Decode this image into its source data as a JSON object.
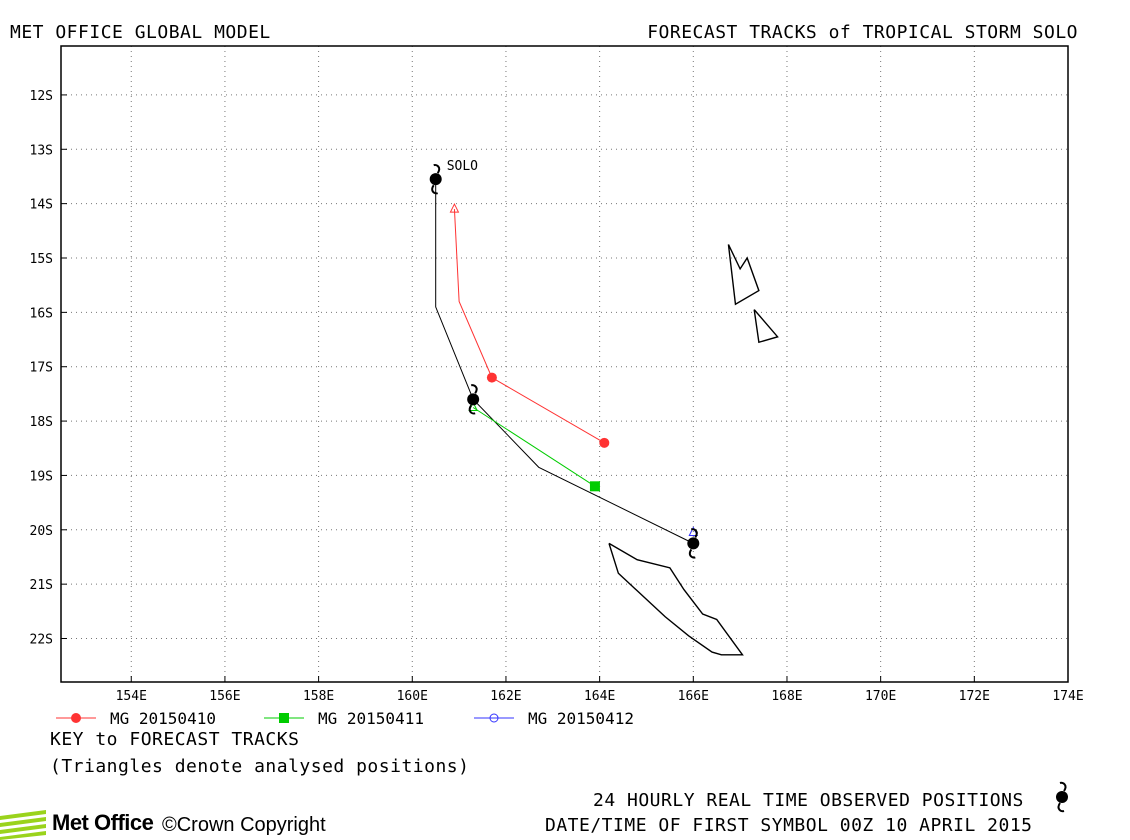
{
  "header": {
    "left_title": "MET OFFICE GLOBAL MODEL",
    "right_title": "FORECAST TRACKS of TROPICAL STORM SOLO"
  },
  "footer": {
    "key_title": "KEY to FORECAST TRACKS",
    "key_note": "(Triangles denote analysed positions)",
    "observed_note": "24 HOURLY REAL TIME OBSERVED POSITIONS",
    "datetime_note": "DATE/TIME OF FIRST SYMBOL 00Z 10 APRIL 2015",
    "logo_text": "Met Office",
    "copyright": "©Crown Copyright"
  },
  "chart_data": {
    "type": "line",
    "title": "FORECAST TRACKS of TROPICAL STORM SOLO",
    "xlim": [
      152.5,
      174.0
    ],
    "ylim": [
      -22.8,
      -11.1
    ],
    "x_ticks": [
      154,
      156,
      158,
      160,
      162,
      164,
      166,
      168,
      170,
      172,
      174
    ],
    "x_tick_labels": [
      "154E",
      "156E",
      "158E",
      "160E",
      "162E",
      "164E",
      "166E",
      "168E",
      "170E",
      "172E",
      "174E"
    ],
    "y_ticks": [
      -12,
      -13,
      -14,
      -15,
      -16,
      -17,
      -18,
      -19,
      -20,
      -21,
      -22
    ],
    "y_tick_labels": [
      "12S",
      "13S",
      "14S",
      "15S",
      "16S",
      "17S",
      "18S",
      "19S",
      "20S",
      "21S",
      "22S"
    ],
    "grid": true,
    "storm_label": "SOLO",
    "observed_track": {
      "color": "#000000",
      "points": [
        [
          160.5,
          -13.55
        ],
        [
          160.5,
          -15.9
        ],
        [
          161.3,
          -17.6
        ],
        [
          162.7,
          -18.85
        ],
        [
          166.0,
          -20.25
        ]
      ],
      "symbols": [
        [
          160.5,
          -13.55
        ],
        [
          161.3,
          -17.6
        ],
        [
          166.0,
          -20.25
        ]
      ]
    },
    "series": [
      {
        "name": "MG 20150410",
        "color": "#ff3333",
        "analysed": [
          160.9,
          -14.1
        ],
        "points": [
          [
            160.9,
            -14.1
          ],
          [
            161.0,
            -15.8
          ],
          [
            161.7,
            -17.2
          ],
          [
            164.1,
            -18.4
          ]
        ],
        "markers": [
          [
            161.7,
            -17.2
          ],
          [
            164.1,
            -18.4
          ]
        ],
        "marker": "circle"
      },
      {
        "name": "MG 20150411",
        "color": "#00cc00",
        "analysed": [
          161.3,
          -17.75
        ],
        "points": [
          [
            161.3,
            -17.75
          ],
          [
            163.9,
            -19.2
          ]
        ],
        "markers": [
          [
            163.9,
            -19.2
          ]
        ],
        "marker": "square"
      },
      {
        "name": "MG 20150412",
        "color": "#3333ff",
        "analysed": [
          166.0,
          -20.05
        ],
        "points": [
          [
            166.0,
            -20.05
          ]
        ],
        "markers": [],
        "marker": "open-circle"
      }
    ],
    "landmasses": [
      [
        [
          166.75,
          -14.75
        ],
        [
          167.0,
          -15.2
        ],
        [
          167.15,
          -15.0
        ],
        [
          167.4,
          -15.6
        ],
        [
          166.9,
          -15.85
        ],
        [
          166.75,
          -14.75
        ]
      ],
      [
        [
          167.3,
          -15.95
        ],
        [
          167.8,
          -16.45
        ],
        [
          167.4,
          -16.55
        ],
        [
          167.3,
          -15.95
        ]
      ],
      [
        [
          164.2,
          -20.25
        ],
        [
          164.4,
          -20.8
        ],
        [
          164.9,
          -21.2
        ],
        [
          165.4,
          -21.6
        ],
        [
          165.9,
          -21.95
        ],
        [
          166.4,
          -22.25
        ],
        [
          166.6,
          -22.3
        ],
        [
          167.05,
          -22.3
        ],
        [
          166.5,
          -21.65
        ],
        [
          166.2,
          -21.55
        ],
        [
          165.8,
          -21.1
        ],
        [
          165.5,
          -20.7
        ],
        [
          164.8,
          -20.55
        ],
        [
          164.2,
          -20.25
        ]
      ]
    ]
  }
}
